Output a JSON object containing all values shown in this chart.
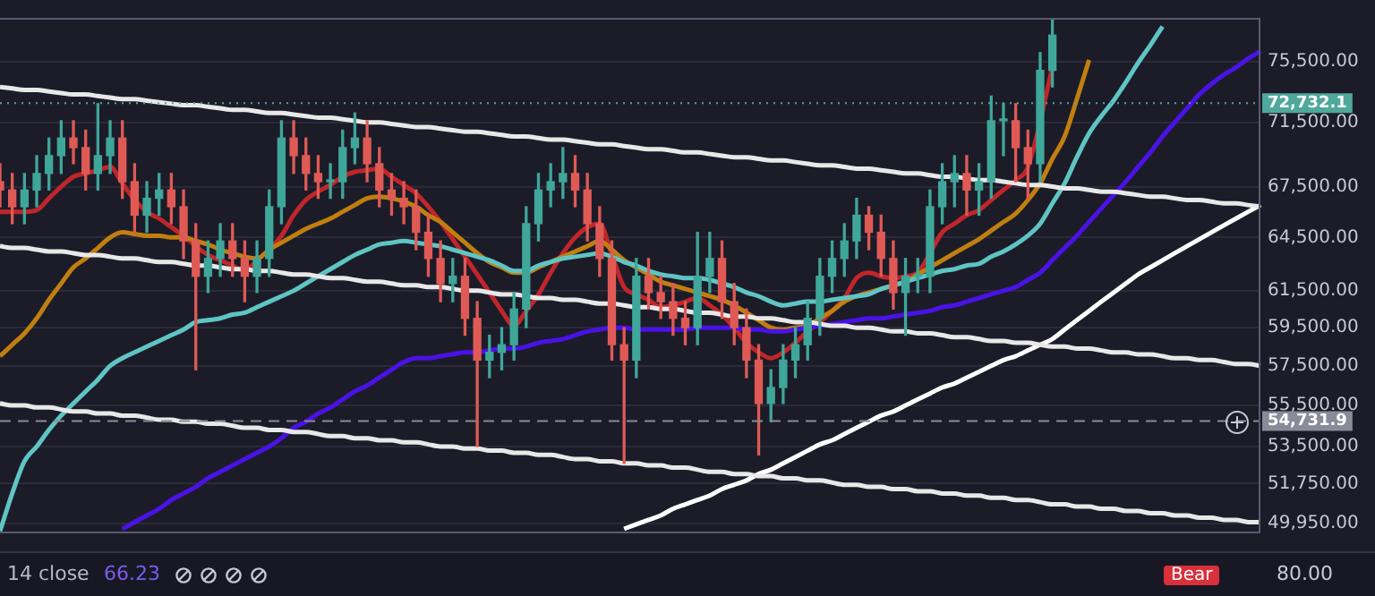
{
  "chart_data": {
    "type": "candlestick",
    "tick_labels": "y",
    "grid": "y",
    "legend": false,
    "marker": "none",
    "log": true,
    "ylim": [
      49500,
      78500
    ],
    "yticks": [
      {
        "value": 49950,
        "label": "49,950.00"
      },
      {
        "value": 51750,
        "label": "51,750.00"
      },
      {
        "value": 53500,
        "label": "53,500.00"
      },
      {
        "value": 55500,
        "label": "55,500.00"
      },
      {
        "value": 57500,
        "label": "57,500.00"
      },
      {
        "value": 59500,
        "label": "59,500.00"
      },
      {
        "value": 61500,
        "label": "61,500.00"
      },
      {
        "value": 64500,
        "label": "64,500.00"
      },
      {
        "value": 67500,
        "label": "67,500.00"
      },
      {
        "value": 71500,
        "label": "71,500.00"
      },
      {
        "value": 75500,
        "label": "75,500.00"
      }
    ],
    "categories": [
      null,
      null,
      null,
      null,
      null,
      null,
      null,
      null,
      null,
      null,
      null,
      null,
      null,
      null,
      null,
      null,
      null,
      null,
      null,
      null,
      null,
      null,
      null,
      null,
      null,
      null,
      null,
      null,
      null,
      null,
      null,
      null,
      null,
      null,
      null,
      null,
      null,
      null,
      null,
      null,
      null,
      null,
      null,
      null,
      null,
      null,
      null,
      null,
      null,
      null,
      null,
      null,
      null,
      null,
      null,
      null,
      null,
      null,
      null,
      null,
      null,
      null,
      null,
      null,
      null,
      null,
      null,
      null,
      null,
      null,
      null,
      null,
      null,
      null,
      null,
      null,
      null,
      null,
      null,
      null,
      null,
      null,
      null,
      null,
      null,
      null,
      null,
      null,
      null,
      null,
      null,
      null,
      null,
      null,
      null,
      null,
      null,
      null,
      null,
      null,
      null,
      null,
      null,
      null
    ],
    "ohlc": [
      [
        67800,
        68900,
        66300,
        67300
      ],
      [
        67300,
        68300,
        65300,
        66300
      ],
      [
        66300,
        68300,
        65300,
        67300
      ],
      [
        67300,
        69400,
        66300,
        68300
      ],
      [
        68300,
        70500,
        67300,
        69400
      ],
      [
        69400,
        71600,
        68300,
        70500
      ],
      [
        70500,
        71600,
        68900,
        69900
      ],
      [
        69900,
        71000,
        67300,
        68300
      ],
      [
        68300,
        72700,
        67300,
        69400
      ],
      [
        69400,
        71600,
        68300,
        70500
      ],
      [
        70500,
        71600,
        66800,
        67800
      ],
      [
        67800,
        68900,
        64800,
        65800
      ],
      [
        65800,
        67800,
        64800,
        66800
      ],
      [
        66800,
        68300,
        65800,
        67300
      ],
      [
        67300,
        68300,
        65300,
        66300
      ],
      [
        66300,
        67300,
        63300,
        64300
      ],
      [
        64300,
        65300,
        57300,
        62300
      ],
      [
        62300,
        64300,
        61400,
        63300
      ],
      [
        63300,
        65300,
        62300,
        64300
      ],
      [
        64300,
        65300,
        62300,
        63300
      ],
      [
        63300,
        64300,
        60900,
        62300
      ],
      [
        62300,
        64300,
        61400,
        63300
      ],
      [
        63300,
        67300,
        62300,
        66300
      ],
      [
        66300,
        71600,
        65300,
        70500
      ],
      [
        70500,
        71600,
        68300,
        69400
      ],
      [
        69400,
        70500,
        67300,
        68300
      ],
      [
        68300,
        69400,
        66800,
        67800
      ],
      [
        67800,
        68900,
        66800,
        67800
      ],
      [
        67800,
        71000,
        66800,
        69900
      ],
      [
        69900,
        72100,
        68900,
        70500
      ],
      [
        70500,
        71600,
        67800,
        68900
      ],
      [
        68900,
        69900,
        66300,
        67300
      ],
      [
        67300,
        68300,
        65800,
        66800
      ],
      [
        66800,
        67800,
        65300,
        66300
      ],
      [
        66300,
        67300,
        63800,
        64800
      ],
      [
        64800,
        65800,
        62300,
        63300
      ],
      [
        63300,
        64300,
        60900,
        61900
      ],
      [
        61900,
        63300,
        60900,
        62300
      ],
      [
        62300,
        63300,
        59100,
        60000
      ],
      [
        60000,
        60900,
        53500,
        57800
      ],
      [
        57800,
        59100,
        56900,
        58200
      ],
      [
        58200,
        59500,
        57300,
        58600
      ],
      [
        58600,
        61400,
        57800,
        60500
      ],
      [
        60500,
        66300,
        59500,
        65300
      ],
      [
        65300,
        68300,
        64300,
        67300
      ],
      [
        67300,
        68900,
        66300,
        67800
      ],
      [
        67800,
        69900,
        66800,
        68300
      ],
      [
        68300,
        69400,
        66300,
        67300
      ],
      [
        67300,
        68300,
        64300,
        65300
      ],
      [
        65300,
        66300,
        62300,
        63300
      ],
      [
        63300,
        64300,
        57800,
        58600
      ],
      [
        58600,
        59500,
        52700,
        57800
      ],
      [
        57800,
        63300,
        56900,
        62300
      ],
      [
        62300,
        63300,
        60500,
        61400
      ],
      [
        61400,
        62300,
        60000,
        60900
      ],
      [
        60900,
        61900,
        59100,
        60000
      ],
      [
        60000,
        60900,
        58600,
        59500
      ],
      [
        59500,
        64800,
        58600,
        62300
      ],
      [
        62300,
        64800,
        61400,
        63300
      ],
      [
        63300,
        64300,
        60000,
        60900
      ],
      [
        60900,
        61900,
        58600,
        59500
      ],
      [
        59500,
        60500,
        56900,
        57800
      ],
      [
        57800,
        58600,
        53100,
        55600
      ],
      [
        55600,
        57300,
        54700,
        56400
      ],
      [
        56400,
        58600,
        55600,
        57800
      ],
      [
        57800,
        59500,
        56900,
        58600
      ],
      [
        58600,
        60900,
        57800,
        60000
      ],
      [
        60000,
        63300,
        59100,
        62300
      ],
      [
        62300,
        64300,
        61400,
        63300
      ],
      [
        63300,
        65300,
        62300,
        64300
      ],
      [
        64300,
        66800,
        63300,
        65800
      ],
      [
        65800,
        66300,
        63800,
        64800
      ],
      [
        64800,
        65800,
        62300,
        63300
      ],
      [
        63300,
        64300,
        60500,
        61400
      ],
      [
        61400,
        63300,
        59100,
        62300
      ],
      [
        62300,
        63300,
        61400,
        62300
      ],
      [
        62300,
        67300,
        61400,
        66300
      ],
      [
        66300,
        68900,
        65300,
        67800
      ],
      [
        67800,
        69400,
        66300,
        68300
      ],
      [
        68300,
        69400,
        65800,
        67300
      ],
      [
        67300,
        68900,
        65800,
        67800
      ],
      [
        67800,
        73200,
        66800,
        71600
      ],
      [
        71600,
        72700,
        69400,
        71600
      ],
      [
        71600,
        72700,
        67800,
        69900
      ],
      [
        69900,
        71000,
        66800,
        68900
      ],
      [
        68900,
        76100,
        67800,
        74900
      ],
      [
        74900,
        78400,
        73800,
        77300
      ],
      null,
      null,
      null,
      null,
      null,
      null,
      null,
      null,
      null,
      null,
      null,
      null,
      null,
      null,
      null,
      null,
      null
    ],
    "colors": [
      "#e05a55",
      "#e05a55",
      "#3fa69a",
      "#3fa69a",
      "#3fa69a",
      "#3fa69a",
      "#e05a55",
      "#e05a55",
      "#3fa69a",
      "#3fa69a",
      "#e05a55",
      "#e05a55",
      "#3fa69a",
      "#3fa69a",
      "#e05a55",
      "#e05a55",
      "#e05a55",
      "#3fa69a",
      "#3fa69a",
      "#e05a55",
      "#e05a55",
      "#3fa69a",
      "#3fa69a",
      "#3fa69a",
      "#e05a55",
      "#e05a55",
      "#e05a55",
      "#3fa69a",
      "#3fa69a",
      "#3fa69a",
      "#e05a55",
      "#e05a55",
      "#e05a55",
      "#e05a55",
      "#e05a55",
      "#e05a55",
      "#e05a55",
      "#3fa69a",
      "#e05a55",
      "#e05a55",
      "#3fa69a",
      "#3fa69a",
      "#3fa69a",
      "#3fa69a",
      "#3fa69a",
      "#3fa69a",
      "#3fa69a",
      "#e05a55",
      "#e05a55",
      "#e05a55",
      "#e05a55",
      "#e05a55",
      "#3fa69a",
      "#e05a55",
      "#e05a55",
      "#e05a55",
      "#e05a55",
      "#3fa69a",
      "#3fa69a",
      "#e05a55",
      "#e05a55",
      "#e05a55",
      "#e05a55",
      "#3fa69a",
      "#3fa69a",
      "#3fa69a",
      "#3fa69a",
      "#3fa69a",
      "#3fa69a",
      "#3fa69a",
      "#3fa69a",
      "#e05a55",
      "#e05a55",
      "#e05a55",
      "#3fa69a",
      "#3fa69a",
      "#3fa69a",
      "#3fa69a",
      "#3fa69a",
      "#e05a55",
      "#3fa69a",
      "#3fa69a",
      "#3fa69a",
      "#e05a55",
      "#e05a55",
      "#3fa69a",
      "#3fa69a",
      null,
      null,
      null,
      null,
      null,
      null,
      null,
      null,
      null,
      null,
      null,
      null,
      null,
      null,
      null,
      null,
      null
    ],
    "series": [
      {
        "type": "line",
        "color": "#e8e8e8",
        "values": [
          73800,
          73700,
          73600,
          73600,
          73500,
          73400,
          73300,
          73300,
          73200,
          73100,
          73000,
          73000,
          72900,
          72800,
          72700,
          72600,
          72600,
          72500,
          72400,
          72300,
          72300,
          72200,
          72100,
          72100,
          72000,
          71900,
          71800,
          71800,
          71700,
          71600,
          71500,
          71500,
          71400,
          71300,
          71200,
          71200,
          71100,
          71000,
          70900,
          70900,
          70800,
          70700,
          70600,
          70600,
          70500,
          70400,
          70400,
          70300,
          70200,
          70100,
          70100,
          70000,
          69900,
          69800,
          69800,
          69700,
          69600,
          69600,
          69500,
          69400,
          69300,
          69300,
          69200,
          69100,
          69100,
          69000,
          68900,
          68800,
          68800,
          68700,
          68600,
          68600,
          68500,
          68400,
          68300,
          68300,
          68200,
          68100,
          68100,
          68000,
          67900,
          67900,
          67800,
          67700,
          67600,
          67600,
          67500,
          67400,
          67400,
          67300,
          67200,
          67200,
          67100,
          67000,
          66900,
          66900,
          66800,
          66700,
          66700,
          66600,
          66500,
          66500,
          66400,
          66300
        ]
      },
      {
        "type": "line",
        "color": "#e8e8e8",
        "values": [
          64000,
          63900,
          63900,
          63800,
          63700,
          63700,
          63600,
          63500,
          63500,
          63400,
          63300,
          63300,
          63200,
          63100,
          63100,
          63000,
          62900,
          62900,
          62800,
          62700,
          62700,
          62600,
          62600,
          62500,
          62400,
          62400,
          62300,
          62200,
          62200,
          62100,
          62000,
          62000,
          61900,
          61800,
          61800,
          61700,
          61700,
          61600,
          61500,
          61500,
          61400,
          61300,
          61300,
          61200,
          61100,
          61100,
          61000,
          61000,
          60900,
          60800,
          60800,
          60700,
          60600,
          60600,
          60500,
          60500,
          60400,
          60300,
          60300,
          60200,
          60100,
          60100,
          60000,
          60000,
          59900,
          59800,
          59800,
          59700,
          59600,
          59600,
          59500,
          59500,
          59400,
          59300,
          59300,
          59200,
          59200,
          59100,
          59000,
          59000,
          58900,
          58800,
          58800,
          58700,
          58700,
          58600,
          58500,
          58500,
          58400,
          58400,
          58300,
          58200,
          58200,
          58100,
          58100,
          58000,
          57900,
          57900,
          57800,
          57800,
          57700,
          57600,
          57600,
          57500
        ]
      },
      {
        "type": "line",
        "color": "#e8e8e8",
        "values": [
          55600,
          55500,
          55500,
          55400,
          55400,
          55300,
          55200,
          55200,
          55100,
          55100,
          55000,
          55000,
          54900,
          54800,
          54800,
          54700,
          54700,
          54600,
          54600,
          54500,
          54400,
          54400,
          54300,
          54300,
          54200,
          54200,
          54100,
          54000,
          54000,
          53900,
          53900,
          53800,
          53800,
          53700,
          53700,
          53600,
          53500,
          53500,
          53400,
          53400,
          53300,
          53300,
          53200,
          53200,
          53100,
          53100,
          53000,
          52900,
          52900,
          52800,
          52800,
          52700,
          52700,
          52600,
          52600,
          52500,
          52500,
          52400,
          52300,
          52300,
          52200,
          52200,
          52100,
          52100,
          52000,
          52000,
          51900,
          51900,
          51800,
          51700,
          51700,
          51600,
          51600,
          51500,
          51500,
          51400,
          51400,
          51300,
          51300,
          51200,
          51200,
          51100,
          51100,
          51000,
          51000,
          50900,
          50800,
          50800,
          50700,
          50700,
          50600,
          50600,
          50500,
          50500,
          50400,
          50400,
          50300,
          50300,
          50200,
          50200,
          50100,
          50100,
          50000,
          50000
        ]
      },
      {
        "type": "line",
        "color": "#4a12e6",
        "values": [
          null,
          null,
          null,
          null,
          null,
          null,
          null,
          null,
          null,
          null,
          49700,
          50000,
          50300,
          50600,
          51000,
          51300,
          51600,
          52000,
          52300,
          52600,
          52900,
          53200,
          53500,
          53900,
          54400,
          54700,
          55100,
          55400,
          55800,
          56200,
          56500,
          56900,
          57300,
          57700,
          57900,
          57900,
          58000,
          58100,
          58200,
          58200,
          58300,
          58400,
          58400,
          58500,
          58700,
          58800,
          58900,
          59100,
          59300,
          59400,
          59500,
          59500,
          59400,
          59400,
          59400,
          59400,
          59400,
          59500,
          59500,
          59500,
          59500,
          59400,
          59400,
          59300,
          59300,
          59400,
          59500,
          59600,
          59700,
          59800,
          59900,
          60000,
          60000,
          60100,
          60200,
          60300,
          60400,
          60600,
          60700,
          60900,
          61100,
          61300,
          61500,
          61700,
          62100,
          62500,
          63200,
          63900,
          64600,
          65400,
          66200,
          67000,
          67800,
          68700,
          69600,
          70600,
          71500,
          72400,
          73300,
          74000,
          74600,
          75100,
          75700,
          76200
        ]
      },
      {
        "type": "line",
        "color": "#5fc4c4",
        "values": [
          49600,
          51300,
          52800,
          53500,
          54300,
          55000,
          55600,
          56200,
          56800,
          57500,
          57900,
          58200,
          58500,
          58800,
          59100,
          59400,
          59800,
          59900,
          60000,
          60200,
          60300,
          60600,
          60900,
          61200,
          61500,
          61900,
          62300,
          62700,
          63100,
          63500,
          63800,
          64100,
          64200,
          64300,
          64200,
          64100,
          64000,
          63800,
          63600,
          63400,
          63200,
          62900,
          62600,
          62600,
          62900,
          63100,
          63300,
          63400,
          63500,
          63600,
          63400,
          63100,
          62900,
          62600,
          62400,
          62300,
          62200,
          62200,
          62100,
          61900,
          61700,
          61400,
          61200,
          60900,
          60700,
          60800,
          60900,
          60900,
          61000,
          61100,
          61200,
          61300,
          61600,
          61800,
          62000,
          62200,
          62400,
          62600,
          62700,
          62900,
          63000,
          63400,
          63700,
          64100,
          64600,
          65300,
          66500,
          67700,
          69300,
          70800,
          71900,
          72900,
          74100,
          75400,
          76600,
          77900,
          null,
          null,
          null,
          null,
          null,
          null,
          null,
          null
        ]
      },
      {
        "type": "line",
        "color": "#c07f10",
        "values": [
          58000,
          58600,
          59200,
          60000,
          61000,
          61900,
          62800,
          63300,
          63900,
          64500,
          64800,
          64700,
          64600,
          64600,
          64500,
          64500,
          64300,
          64100,
          63800,
          63600,
          63400,
          63300,
          63800,
          64200,
          64600,
          65000,
          65300,
          65600,
          66000,
          66400,
          66800,
          66900,
          66800,
          66600,
          66300,
          65800,
          65400,
          64800,
          64200,
          63600,
          63100,
          62800,
          62500,
          62500,
          62800,
          63100,
          63400,
          63700,
          64000,
          64300,
          63800,
          63200,
          62800,
          62400,
          62000,
          61800,
          61600,
          61400,
          61200,
          61000,
          60700,
          60300,
          59900,
          59500,
          59400,
          59500,
          59600,
          60000,
          60400,
          60900,
          61200,
          61400,
          61600,
          null,
          62000,
          62400,
          62800,
          63200,
          63600,
          64000,
          64400,
          64900,
          65400,
          65900,
          66700,
          67700,
          69200,
          70600,
          73000,
          75600,
          null,
          null,
          null,
          null,
          null,
          null,
          null,
          null,
          null,
          null,
          null,
          null,
          null,
          null
        ]
      },
      {
        "type": "line",
        "color": "#c0262b",
        "values": [
          66000,
          66000,
          66000,
          66100,
          66800,
          67500,
          68100,
          68300,
          68500,
          68700,
          67700,
          66700,
          66000,
          65600,
          65100,
          64600,
          64000,
          63500,
          63200,
          62900,
          62600,
          63200,
          63800,
          64600,
          65800,
          66700,
          67200,
          67600,
          68100,
          68400,
          68500,
          68600,
          68100,
          67600,
          67100,
          66300,
          65400,
          64400,
          63400,
          62400,
          61400,
          60400,
          59600,
          60400,
          61300,
          62500,
          63600,
          64500,
          65100,
          65300,
          63500,
          61700,
          61300,
          61000,
          60600,
          60700,
          60900,
          61100,
          60700,
          60200,
          59500,
          58700,
          58200,
          57900,
          58200,
          58700,
          59300,
          59800,
          60400,
          61100,
          62200,
          62500,
          62300,
          62200,
          62300,
          62500,
          63600,
          64800,
          65300,
          65800,
          66100,
          66700,
          67300,
          67900,
          68700,
          null,
          75100,
          null,
          null,
          null,
          null,
          null,
          null,
          null,
          null,
          null,
          null,
          null,
          null,
          null,
          null,
          null,
          null,
          null
        ]
      },
      {
        "type": "line",
        "color": "#ffffff",
        "values": [
          null,
          null,
          null,
          null,
          null,
          null,
          null,
          null,
          null,
          null,
          null,
          null,
          null,
          null,
          null,
          null,
          null,
          null,
          null,
          null,
          null,
          null,
          null,
          null,
          null,
          null,
          null,
          null,
          null,
          null,
          null,
          null,
          null,
          null,
          null,
          null,
          null,
          null,
          null,
          null,
          null,
          null,
          null,
          null,
          null,
          null,
          null,
          null,
          null,
          null,
          null,
          49700,
          49900,
          50100,
          50300,
          50600,
          50800,
          51000,
          51200,
          51500,
          51700,
          51900,
          52200,
          52400,
          52700,
          53000,
          53300,
          53600,
          53800,
          54100,
          54400,
          54700,
          55000,
          55200,
          55500,
          55800,
          56100,
          56400,
          56600,
          56900,
          57200,
          57500,
          57800,
          58000,
          58300,
          58600,
          58900,
          59400,
          59900,
          60400,
          60900,
          61400,
          61900,
          62400,
          62800,
          63200,
          63600,
          64000,
          64400,
          64800,
          65200,
          65600,
          66000,
          66400
        ]
      }
    ],
    "ref_lines": [
      {
        "axis": "y",
        "value": 72732.1,
        "label": "72,732.1",
        "color": "#4fa89c",
        "line_style": "dotted"
      },
      {
        "axis": "y",
        "value": 54731.9,
        "label": "54,731.9",
        "color": "#8a8a99",
        "line_style": "dashed"
      }
    ],
    "annotations": [
      "14 close",
      "66.23",
      "80.00",
      "Bear"
    ]
  }
}
